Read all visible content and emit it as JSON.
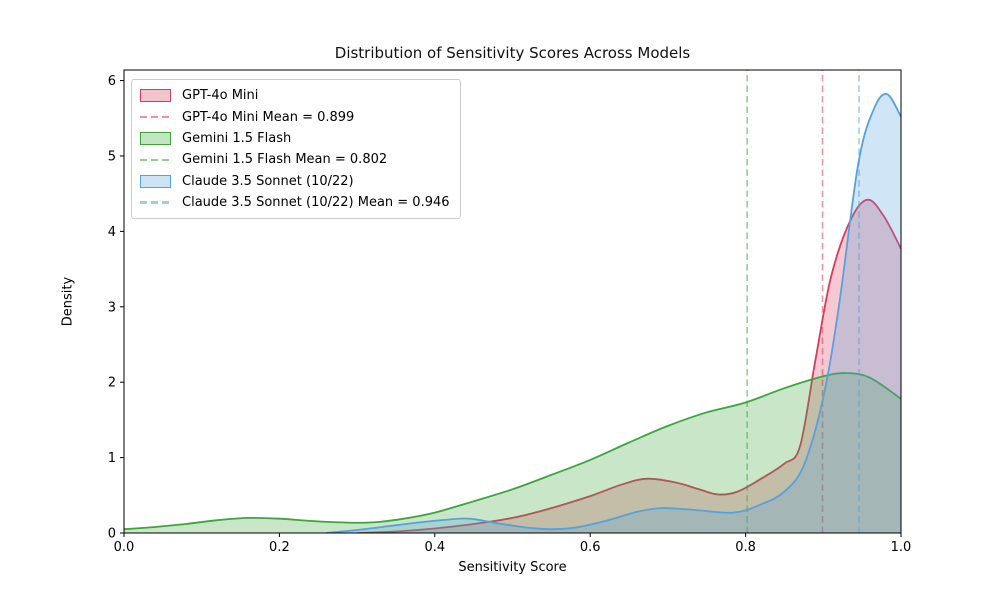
{
  "chart_data": {
    "type": "area",
    "subtype": "kde-density",
    "title": "Distribution of Sensitivity Scores Across Models",
    "xlabel": "Sensitivity Score",
    "ylabel": "Density",
    "xlim": [
      0.0,
      1.0
    ],
    "ylim": [
      0,
      6.14
    ],
    "grid": false,
    "legend_position": "upper-left",
    "x_ticks": [
      {
        "v": 0.0,
        "label": "0.0"
      },
      {
        "v": 0.2,
        "label": "0.2"
      },
      {
        "v": 0.4,
        "label": "0.4"
      },
      {
        "v": 0.6,
        "label": "0.6"
      },
      {
        "v": 0.8,
        "label": "0.8"
      },
      {
        "v": 1.0,
        "label": "1.0"
      }
    ],
    "y_ticks": [
      {
        "v": 0,
        "label": "0"
      },
      {
        "v": 1,
        "label": "1"
      },
      {
        "v": 2,
        "label": "2"
      },
      {
        "v": 3,
        "label": "3"
      },
      {
        "v": 4,
        "label": "4"
      },
      {
        "v": 5,
        "label": "5"
      },
      {
        "v": 6,
        "label": "6"
      }
    ],
    "series": [
      {
        "name": "GPT-4o Mini",
        "mean": 0.899,
        "mean_label": "GPT-4o Mini Mean = 0.899",
        "color": "#dc3a5c",
        "points": [
          [
            0.3,
            0.0
          ],
          [
            0.35,
            0.02
          ],
          [
            0.4,
            0.06
          ],
          [
            0.45,
            0.12
          ],
          [
            0.5,
            0.2
          ],
          [
            0.55,
            0.33
          ],
          [
            0.6,
            0.49
          ],
          [
            0.64,
            0.64
          ],
          [
            0.673,
            0.72
          ],
          [
            0.71,
            0.67
          ],
          [
            0.74,
            0.58
          ],
          [
            0.765,
            0.51
          ],
          [
            0.79,
            0.55
          ],
          [
            0.82,
            0.72
          ],
          [
            0.85,
            0.92
          ],
          [
            0.87,
            1.15
          ],
          [
            0.89,
            2.3
          ],
          [
            0.91,
            3.4
          ],
          [
            0.935,
            4.15
          ],
          [
            0.957,
            4.42
          ],
          [
            0.978,
            4.2
          ],
          [
            1.0,
            3.77
          ]
        ]
      },
      {
        "name": "Gemini 1.5 Flash",
        "mean": 0.802,
        "mean_label": "Gemini 1.5 Flash Mean = 0.802",
        "color": "#3ca53c",
        "points": [
          [
            0.0,
            0.05
          ],
          [
            0.04,
            0.08
          ],
          [
            0.08,
            0.12
          ],
          [
            0.12,
            0.17
          ],
          [
            0.16,
            0.2
          ],
          [
            0.2,
            0.19
          ],
          [
            0.24,
            0.16
          ],
          [
            0.28,
            0.14
          ],
          [
            0.32,
            0.14
          ],
          [
            0.36,
            0.19
          ],
          [
            0.4,
            0.27
          ],
          [
            0.45,
            0.42
          ],
          [
            0.5,
            0.58
          ],
          [
            0.55,
            0.77
          ],
          [
            0.6,
            0.97
          ],
          [
            0.65,
            1.2
          ],
          [
            0.7,
            1.42
          ],
          [
            0.75,
            1.6
          ],
          [
            0.8,
            1.73
          ],
          [
            0.85,
            1.92
          ],
          [
            0.9,
            2.08
          ],
          [
            0.93,
            2.12
          ],
          [
            0.96,
            2.06
          ],
          [
            1.0,
            1.78
          ]
        ]
      },
      {
        "name": "Claude 3.5 Sonnet (10/22)",
        "mean": 0.946,
        "mean_label": "Claude 3.5 Sonnet (10/22) Mean = 0.946",
        "color": "#57a1dc",
        "points": [
          [
            0.26,
            0.0
          ],
          [
            0.3,
            0.04
          ],
          [
            0.34,
            0.09
          ],
          [
            0.38,
            0.14
          ],
          [
            0.42,
            0.18
          ],
          [
            0.445,
            0.19
          ],
          [
            0.48,
            0.13
          ],
          [
            0.52,
            0.07
          ],
          [
            0.55,
            0.05
          ],
          [
            0.58,
            0.07
          ],
          [
            0.62,
            0.16
          ],
          [
            0.66,
            0.28
          ],
          [
            0.692,
            0.33
          ],
          [
            0.73,
            0.31
          ],
          [
            0.784,
            0.27
          ],
          [
            0.82,
            0.38
          ],
          [
            0.85,
            0.55
          ],
          [
            0.875,
            0.9
          ],
          [
            0.9,
            1.8
          ],
          [
            0.92,
            3.0
          ],
          [
            0.945,
            4.9
          ],
          [
            0.965,
            5.62
          ],
          [
            0.982,
            5.82
          ],
          [
            1.0,
            5.52
          ]
        ]
      }
    ],
    "style": {
      "fill_opacity": 0.28,
      "mean_line_opacity": 0.55,
      "axis_color": "#000000",
      "background": "#ffffff"
    }
  }
}
